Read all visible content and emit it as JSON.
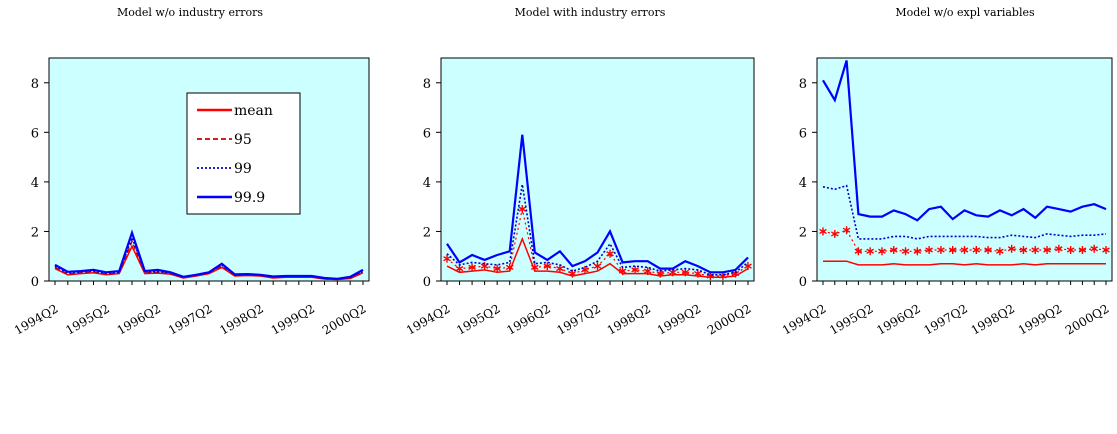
{
  "chart_data": [
    {
      "type": "line",
      "title": "Model w/o industry errors",
      "background": "#ccffff",
      "ylim": [
        0,
        9
      ],
      "yticks": [
        "0",
        "2",
        "4",
        "6",
        "8"
      ],
      "xticks": [
        "1994Q2",
        "1995Q2",
        "1996Q2",
        "1997Q2",
        "1998Q2",
        "1999Q2",
        "2000Q2"
      ],
      "legend": {
        "placement": "top-right",
        "entries": [
          "mean",
          "95",
          "99",
          "99.9"
        ]
      },
      "series": [
        {
          "name": "mean",
          "color": "#ff0000",
          "style": "solid",
          "values": [
            0.5,
            0.25,
            0.3,
            0.33,
            0.25,
            0.3,
            1.4,
            0.3,
            0.32,
            0.28,
            0.12,
            0.2,
            0.3,
            0.55,
            0.2,
            0.22,
            0.2,
            0.12,
            0.15,
            0.15,
            0.15,
            0.08,
            0.06,
            0.1,
            0.33
          ]
        },
        {
          "name": "95",
          "color": "#cc0000",
          "style": "dashed",
          "values": [
            0.55,
            0.28,
            0.33,
            0.36,
            0.28,
            0.32,
            1.6,
            0.33,
            0.35,
            0.3,
            0.14,
            0.23,
            0.33,
            0.6,
            0.22,
            0.24,
            0.22,
            0.14,
            0.17,
            0.17,
            0.17,
            0.09,
            0.07,
            0.12,
            0.37
          ]
        },
        {
          "name": "99",
          "color": "#0000cc",
          "style": "dotted",
          "values": [
            0.6,
            0.32,
            0.37,
            0.4,
            0.31,
            0.35,
            1.75,
            0.37,
            0.38,
            0.33,
            0.16,
            0.26,
            0.36,
            0.65,
            0.24,
            0.26,
            0.24,
            0.16,
            0.19,
            0.19,
            0.19,
            0.1,
            0.08,
            0.14,
            0.4
          ]
        },
        {
          "name": "99.9",
          "color": "#0000ff",
          "style": "solid",
          "values": [
            0.65,
            0.37,
            0.4,
            0.45,
            0.35,
            0.4,
            1.95,
            0.4,
            0.45,
            0.35,
            0.17,
            0.25,
            0.35,
            0.7,
            0.27,
            0.28,
            0.25,
            0.18,
            0.2,
            0.2,
            0.2,
            0.12,
            0.09,
            0.17,
            0.45
          ]
        }
      ]
    },
    {
      "type": "line",
      "title": "Model with industry errors",
      "background": "#ccffff",
      "ylim": [
        0,
        9
      ],
      "yticks": [
        "0",
        "2",
        "4",
        "6",
        "8"
      ],
      "xticks": [
        "1994Q2",
        "1995Q2",
        "1996Q2",
        "1997Q2",
        "1998Q2",
        "1999Q2",
        "2000Q2"
      ],
      "series": [
        {
          "name": "mean",
          "color": "#ff0000",
          "style": "solid",
          "values": [
            0.6,
            0.35,
            0.4,
            0.45,
            0.35,
            0.4,
            1.7,
            0.4,
            0.4,
            0.35,
            0.2,
            0.3,
            0.4,
            0.7,
            0.3,
            0.3,
            0.3,
            0.2,
            0.25,
            0.25,
            0.2,
            0.15,
            0.15,
            0.2,
            0.5
          ]
        },
        {
          "name": "95",
          "color": "#ff0000",
          "style": "stars",
          "values": [
            0.9,
            0.5,
            0.55,
            0.6,
            0.5,
            0.55,
            2.9,
            0.55,
            0.6,
            0.5,
            0.3,
            0.45,
            0.6,
            1.1,
            0.4,
            0.45,
            0.4,
            0.3,
            0.35,
            0.35,
            0.3,
            0.2,
            0.2,
            0.3,
            0.6
          ]
        },
        {
          "name": "99",
          "color": "#0000cc",
          "style": "dotted",
          "values": [
            1.1,
            0.65,
            0.75,
            0.7,
            0.65,
            0.75,
            3.9,
            0.7,
            0.75,
            0.65,
            0.4,
            0.55,
            0.8,
            1.5,
            0.55,
            0.6,
            0.55,
            0.4,
            0.45,
            0.5,
            0.45,
            0.25,
            0.25,
            0.35,
            0.75
          ]
        },
        {
          "name": "99.9",
          "color": "#0000ff",
          "style": "solid",
          "values": [
            1.5,
            0.75,
            1.05,
            0.85,
            1.05,
            1.2,
            5.9,
            1.15,
            0.85,
            1.2,
            0.6,
            0.8,
            1.15,
            2.0,
            0.75,
            0.8,
            0.8,
            0.5,
            0.5,
            0.8,
            0.6,
            0.35,
            0.35,
            0.45,
            0.95
          ]
        }
      ]
    },
    {
      "type": "line",
      "title": "Model w/o expl variables",
      "background": "#ccffff",
      "ylim": [
        0,
        9
      ],
      "yticks": [
        "0",
        "2",
        "4",
        "6",
        "8"
      ],
      "xticks": [
        "1994Q2",
        "1995Q2",
        "1996Q2",
        "1997Q2",
        "1998Q2",
        "1999Q2",
        "2000Q2"
      ],
      "series": [
        {
          "name": "mean",
          "color": "#ff0000",
          "style": "solid",
          "values": [
            0.8,
            0.8,
            0.8,
            0.65,
            0.65,
            0.65,
            0.7,
            0.65,
            0.65,
            0.65,
            0.7,
            0.7,
            0.65,
            0.7,
            0.65,
            0.65,
            0.65,
            0.7,
            0.65,
            0.7,
            0.7,
            0.7,
            0.7,
            0.7,
            0.7
          ]
        },
        {
          "name": "95",
          "color": "#ff0000",
          "style": "stars",
          "values": [
            2.0,
            1.9,
            2.05,
            1.2,
            1.2,
            1.2,
            1.25,
            1.2,
            1.2,
            1.25,
            1.25,
            1.25,
            1.25,
            1.25,
            1.25,
            1.2,
            1.3,
            1.25,
            1.25,
            1.25,
            1.3,
            1.25,
            1.25,
            1.3,
            1.25
          ]
        },
        {
          "name": "99",
          "color": "#0000cc",
          "style": "dotted",
          "values": [
            3.8,
            3.7,
            3.85,
            1.7,
            1.7,
            1.7,
            1.8,
            1.8,
            1.7,
            1.8,
            1.8,
            1.8,
            1.8,
            1.8,
            1.75,
            1.75,
            1.85,
            1.8,
            1.75,
            1.9,
            1.85,
            1.8,
            1.85,
            1.85,
            1.9
          ]
        },
        {
          "name": "99.9",
          "color": "#0000ff",
          "style": "solid",
          "values": [
            8.1,
            7.3,
            8.9,
            2.7,
            2.6,
            2.6,
            2.85,
            2.7,
            2.45,
            2.9,
            3.0,
            2.5,
            2.85,
            2.65,
            2.6,
            2.85,
            2.65,
            2.9,
            2.55,
            3.0,
            2.9,
            2.8,
            3.0,
            3.1,
            2.9
          ]
        }
      ]
    }
  ]
}
